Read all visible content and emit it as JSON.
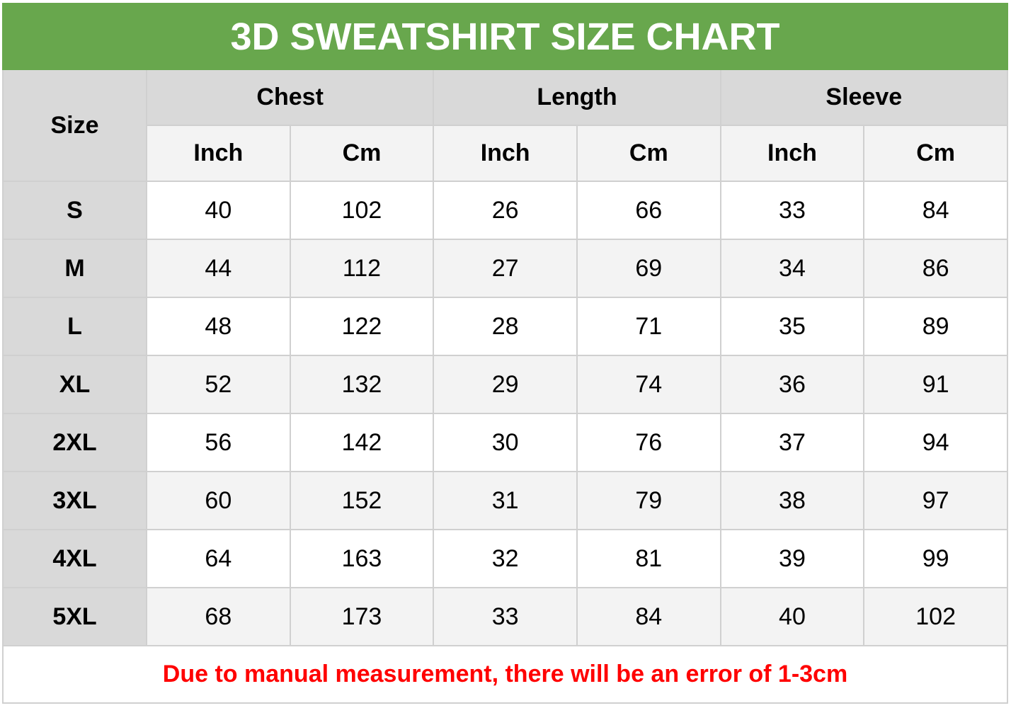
{
  "title": "3D SWEATSHIRT SIZE CHART",
  "colors": {
    "title_bg": "#68a74d",
    "note": "#ff0000"
  },
  "header": {
    "size": "Size",
    "groups": [
      "Chest",
      "Length",
      "Sleeve"
    ],
    "units": [
      "Inch",
      "Cm",
      "Inch",
      "Cm",
      "Inch",
      "Cm"
    ]
  },
  "rows": [
    {
      "size": "S",
      "values": [
        "40",
        "102",
        "26",
        "66",
        "33",
        "84"
      ]
    },
    {
      "size": "M",
      "values": [
        "44",
        "112",
        "27",
        "69",
        "34",
        "86"
      ]
    },
    {
      "size": "L",
      "values": [
        "48",
        "122",
        "28",
        "71",
        "35",
        "89"
      ]
    },
    {
      "size": "XL",
      "values": [
        "52",
        "132",
        "29",
        "74",
        "36",
        "91"
      ]
    },
    {
      "size": "2XL",
      "values": [
        "56",
        "142",
        "30",
        "76",
        "37",
        "94"
      ]
    },
    {
      "size": "3XL",
      "values": [
        "60",
        "152",
        "31",
        "79",
        "38",
        "97"
      ]
    },
    {
      "size": "4XL",
      "values": [
        "64",
        "163",
        "32",
        "81",
        "39",
        "99"
      ]
    },
    {
      "size": "5XL",
      "values": [
        "68",
        "173",
        "33",
        "84",
        "40",
        "102"
      ]
    }
  ],
  "note": "Due to manual measurement, there will be an error of 1-3cm"
}
